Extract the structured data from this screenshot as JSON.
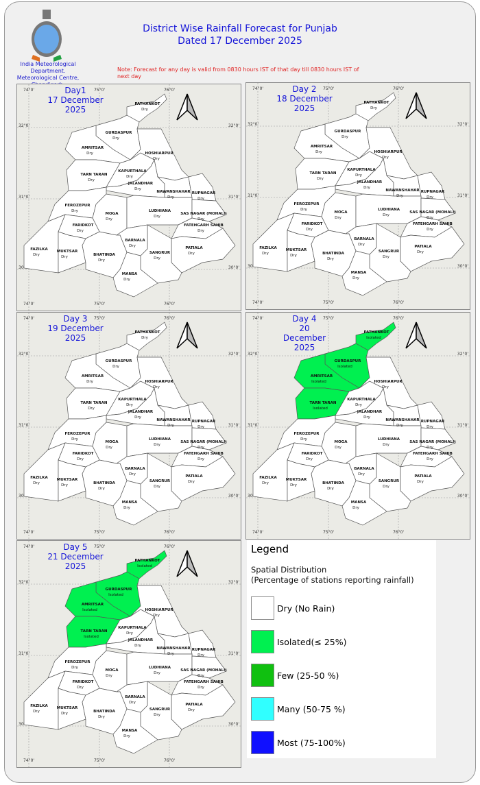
{
  "header": {
    "title_line1": "District Wise Rainfall Forecast for Punjab",
    "title_line2": "Dated 17 December 2025",
    "org_line1": "India Meteorological",
    "org_line2": "Department.",
    "org_line3": "Meteorological Centre,",
    "org_line4": "Chandigarh.",
    "note": "Note: Forecast for any day is valid from 0830 hours IST of that day till 0830 hours IST of next day"
  },
  "ticks": {
    "lon": [
      "74°0'",
      "75°0'",
      "76°0'"
    ],
    "lat": [
      "32°0'",
      "31°0'",
      "30°0'"
    ]
  },
  "colors": {
    "Dry": "#ffffff",
    "Isolated": "#00f050",
    "Few": "#10c010",
    "Many": "#30ffff",
    "Most": "#1010ff",
    "title": "#1515d8",
    "note": "#e02020"
  },
  "districts": [
    "PATHANKOT",
    "GURDASPUR",
    "AMRITSAR",
    "TARN TARAN",
    "HOSHIARPUR",
    "KAPURTHALA",
    "JALANDHAR",
    "NAWANSHAHAR",
    "RUPNAGAR",
    "FEROZEPUR",
    "MOGA",
    "LUDHIANA",
    "SAS NAGAR (MOHALI)",
    "FATEHGARH SAHIB",
    "PATIALA",
    "SANGRUR",
    "BARNALA",
    "FARIDKOT",
    "FAZILKA",
    "MUKTSAR",
    "BHATINDA",
    "MANSA"
  ],
  "days": [
    {
      "title": [
        "Day1",
        "17 December",
        "2025"
      ],
      "isolated": []
    },
    {
      "title": [
        "Day 2",
        "18 December",
        "2025"
      ],
      "isolated": []
    },
    {
      "title": [
        "Day 3",
        "19 December",
        "2025"
      ],
      "isolated": []
    },
    {
      "title": [
        "Day 4",
        "20",
        "December",
        "2025"
      ],
      "isolated": [
        "PATHANKOT",
        "GURDASPUR",
        "AMRITSAR",
        "TARN TARAN"
      ]
    },
    {
      "title": [
        "Day 5",
        "21 December",
        "2025"
      ],
      "isolated": [
        "PATHANKOT",
        "GURDASPUR",
        "AMRITSAR",
        "TARN TARAN"
      ]
    }
  ],
  "status_labels": {
    "dry": "Dry",
    "isolated": "Isolated"
  },
  "legend": {
    "title": "Legend",
    "subtitle1": "Spatial Distribution",
    "subtitle2": "(Percentage of stations reporting rainfall)",
    "items": [
      {
        "label": "Dry (No Rain)",
        "color": "#ffffff"
      },
      {
        "label": "Isolated(≤ 25%)",
        "color": "#00f050"
      },
      {
        "label": "Few (25-50 %)",
        "color": "#10c010"
      },
      {
        "label": "Many (50-75 %)",
        "color": "#30ffff"
      },
      {
        "label": "Most (75-100%)",
        "color": "#1010ff"
      }
    ]
  }
}
